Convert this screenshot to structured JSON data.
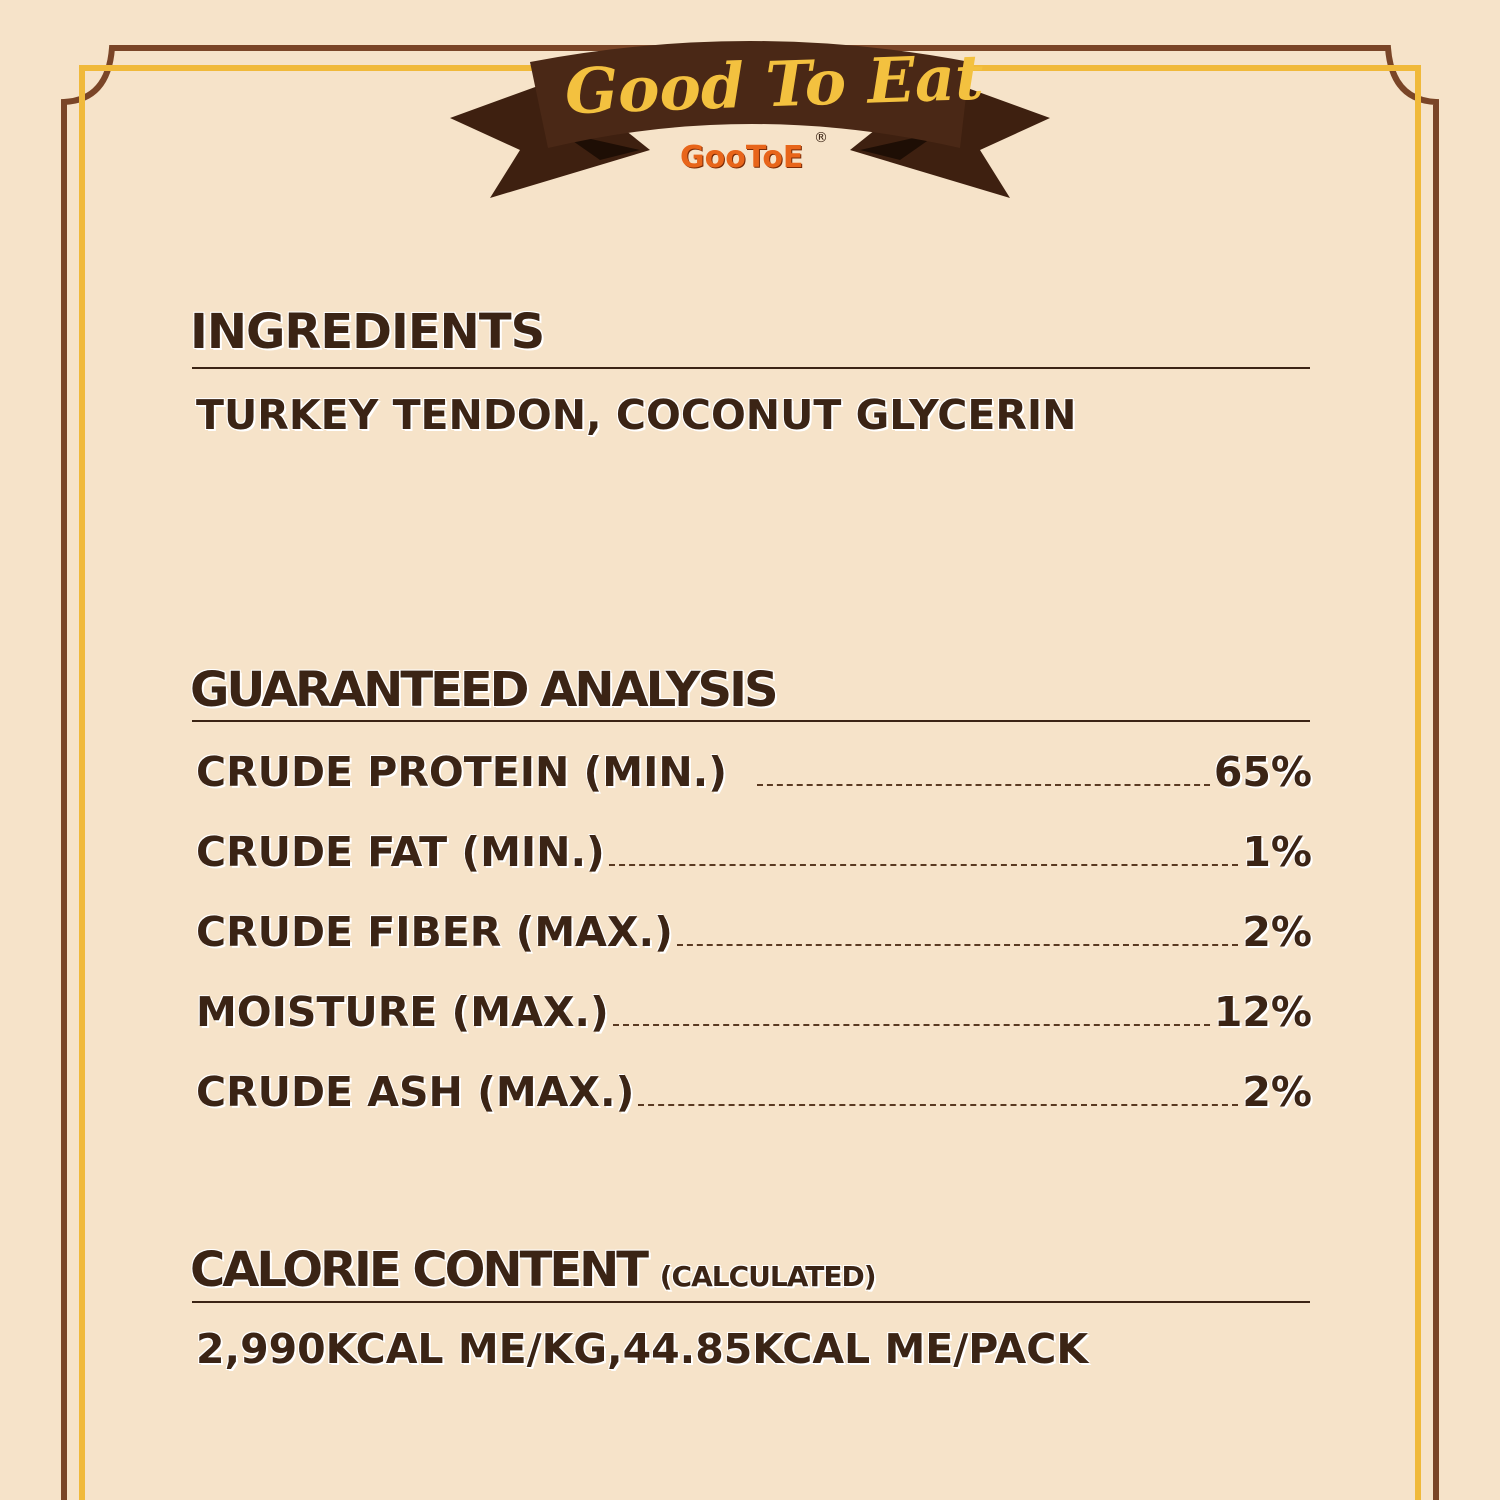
{
  "banner": {
    "title": "Good To Eat",
    "brand": "GooToE",
    "registered": "®"
  },
  "colors": {
    "background": "#f6e3c9",
    "frame_brown": "#7a4527",
    "frame_gold": "#f0b93a",
    "ribbon": "#4a2816",
    "text": "#3b2415",
    "brand_orange": "#e8651a"
  },
  "ingredients": {
    "heading": "INGREDIENTS",
    "text": "TURKEY TENDON, COCONUT GLYCERIN"
  },
  "analysis": {
    "heading": "GUARANTEED ANALYSIS",
    "rows": [
      {
        "label": "CRUDE PROTEIN (MIN.)",
        "value": "65%"
      },
      {
        "label": "CRUDE FAT (MIN.)",
        "value": "1%"
      },
      {
        "label": "CRUDE FIBER (MAX.)",
        "value": "2%"
      },
      {
        "label": "MOISTURE (MAX.)",
        "value": "12%"
      },
      {
        "label": "CRUDE ASH (MAX.)",
        "value": "2%"
      }
    ]
  },
  "calorie": {
    "heading": "CALORIE CONTENT",
    "note": "(CALCULATED)",
    "text": "2,990KCAL ME/KG,44.85KCAL ME/PACK"
  }
}
